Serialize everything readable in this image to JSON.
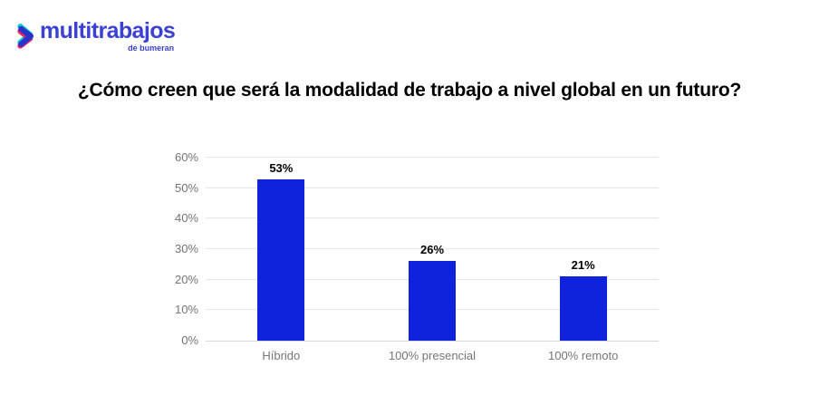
{
  "logo": {
    "brand": "multitrabajos",
    "sub_brand": "de bumeran",
    "icon": "chevron-right-logo"
  },
  "title": "¿Cómo creen que será la modalidad de trabajo a nivel global en un futuro?",
  "colors": {
    "bar": "#0e23db",
    "logo_text": "#3a41d3",
    "logo_icon_teal": "#0bc6d2",
    "logo_icon_red": "#e8275f",
    "logo_icon_blue": "#2b33cf",
    "axis_text": "#757575",
    "gridline": "#e6e6e6",
    "baseline": "#d6d6d6",
    "title_text": "#000000",
    "background": "#ffffff"
  },
  "chart_data": {
    "type": "bar",
    "title": "¿Cómo creen que será la modalidad de trabajo a nivel global en un futuro?",
    "categories": [
      "Híbrido",
      "100% presencial",
      "100% remoto"
    ],
    "values": [
      53,
      26,
      21
    ],
    "value_labels": [
      "53%",
      "26%",
      "21%"
    ],
    "xlabel": "",
    "ylabel": "",
    "ylim": [
      0,
      60
    ],
    "y_tick_step": 10,
    "y_tick_labels": [
      "0%",
      "10%",
      "20%",
      "30%",
      "40%",
      "50%",
      "60%"
    ],
    "grid": "horizontal",
    "legend": "none",
    "bar_color": "#0e23db"
  }
}
